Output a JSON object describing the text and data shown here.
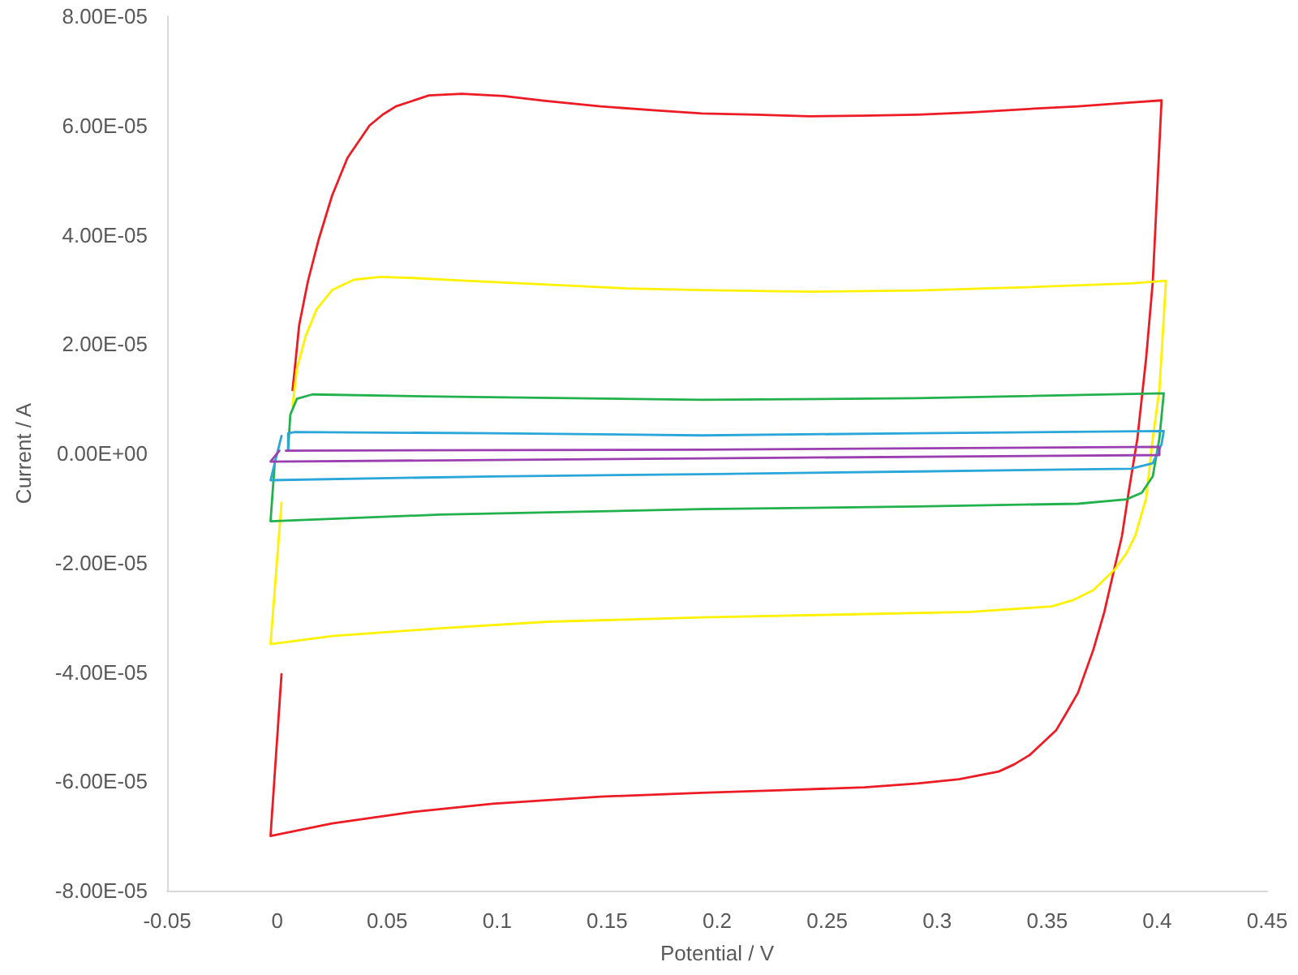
{
  "chart_data": {
    "type": "line",
    "xlabel": "Potential / V",
    "ylabel": "Current / A",
    "xlim": [
      -0.05,
      0.45
    ],
    "xticks": [
      -0.05,
      0,
      0.05,
      0.1,
      0.15,
      0.2,
      0.25,
      0.3,
      0.35,
      0.4,
      0.45
    ],
    "ylim": [
      -8e-05,
      8e-05
    ],
    "yticks": [
      {
        "value": -8e-05,
        "label": "-8.00E-05"
      },
      {
        "value": -6e-05,
        "label": "-6.00E-05"
      },
      {
        "value": -4e-05,
        "label": "-4.00E-05"
      },
      {
        "value": -2e-05,
        "label": "-2.00E-05"
      },
      {
        "value": 0,
        "label": "0.00E+00"
      },
      {
        "value": 2e-05,
        "label": "2.00E-05"
      },
      {
        "value": 4e-05,
        "label": "4.00E-05"
      },
      {
        "value": 6e-05,
        "label": "6.00E-05"
      },
      {
        "value": 8e-05,
        "label": "8.00E-05"
      }
    ],
    "grid": false,
    "series": [
      {
        "color": "#ed1c24",
        "x": [
          0.007,
          0.008,
          0.01,
          0.014,
          0.019,
          0.025,
          0.032,
          0.042,
          0.048,
          0.054,
          0.069,
          0.084,
          0.103,
          0.122,
          0.147,
          0.171,
          0.193,
          0.218,
          0.242,
          0.266,
          0.291,
          0.315,
          0.34,
          0.364,
          0.388,
          0.402,
          0.398,
          0.395,
          0.391,
          0.387,
          0.384,
          0.38,
          0.376,
          0.371,
          0.364,
          0.359,
          0.354,
          0.342,
          0.335,
          0.328,
          0.31,
          0.291,
          0.267,
          0.23,
          0.193,
          0.147,
          0.098,
          0.062,
          0.025,
          -0.003,
          0.002
        ],
        "values": [
          1.16e-05,
          1.54e-05,
          2.34e-05,
          3.15e-05,
          3.93e-05,
          4.72e-05,
          5.41e-05,
          6e-05,
          6.2e-05,
          6.35e-05,
          6.55e-05,
          6.58e-05,
          6.54e-05,
          6.45e-05,
          6.35e-05,
          6.28e-05,
          6.22e-05,
          6.2e-05,
          6.17e-05,
          6.18e-05,
          6.2e-05,
          6.24e-05,
          6.3e-05,
          6.35e-05,
          6.42e-05,
          6.46e-05,
          3.14e-05,
          1.75e-05,
          2.7e-06,
          -7.2e-06,
          -1.51e-05,
          -2.2e-05,
          -2.9e-05,
          -3.59e-05,
          -4.38e-05,
          -4.73e-05,
          -5.07e-05,
          -5.52e-05,
          -5.69e-05,
          -5.82e-05,
          -5.96e-05,
          -6.04e-05,
          -6.11e-05,
          -6.16e-05,
          -6.21e-05,
          -6.28e-05,
          -6.41e-05,
          -6.56e-05,
          -6.77e-05,
          -7e-05,
          -4.04e-05
        ]
      },
      {
        "color": "#fff200",
        "x": [
          0.007,
          0.009,
          0.013,
          0.018,
          0.025,
          0.035,
          0.047,
          0.062,
          0.086,
          0.123,
          0.159,
          0.193,
          0.242,
          0.291,
          0.34,
          0.388,
          0.404,
          0.401,
          0.398,
          0.395,
          0.39,
          0.386,
          0.381,
          0.371,
          0.362,
          0.352,
          0.315,
          0.254,
          0.193,
          0.123,
          0.074,
          0.025,
          -0.003,
          0.002
        ],
        "values": [
          8.6e-06,
          1.55e-05,
          2.15e-05,
          2.64e-05,
          2.99e-05,
          3.18e-05,
          3.23e-05,
          3.21e-05,
          3.16e-05,
          3.09e-05,
          3.02e-05,
          2.99e-05,
          2.96e-05,
          2.98e-05,
          3.04e-05,
          3.11e-05,
          3.16e-05,
          1.16e-05,
          2.7e-06,
          -8.2e-06,
          -1.51e-05,
          -1.83e-05,
          -2.11e-05,
          -2.5e-05,
          -2.68e-05,
          -2.8e-05,
          -2.9e-05,
          -2.95e-05,
          -3e-05,
          -3.08e-05,
          -3.2e-05,
          -3.34e-05,
          -3.49e-05,
          -9e-06
        ]
      },
      {
        "color": "#22b14c",
        "x": [
          0.005,
          0.006,
          0.009,
          0.016,
          0.074,
          0.193,
          0.291,
          0.403,
          0.401,
          0.398,
          0.393,
          0.386,
          0.364,
          0.291,
          0.193,
          0.074,
          -0.003,
          -0.001
        ],
        "values": [
          7e-07,
          7.1e-06,
          1e-05,
          1.08e-05,
          1.04e-05,
          9.8e-06,
          1.01e-05,
          1.1e-05,
          2.7e-06,
          -4.2e-06,
          -7.2e-06,
          -8.4e-06,
          -9.2e-06,
          -9.7e-06,
          -1.02e-05,
          -1.12e-05,
          -1.24e-05,
          -1.3e-06
        ]
      },
      {
        "color": "#2aa6d9",
        "x": [
          0.005,
          0.005,
          0.008,
          0.098,
          0.193,
          0.291,
          0.403,
          0.402,
          0.398,
          0.388,
          0.291,
          0.193,
          0.098,
          -0.003,
          0.002
        ],
        "values": [
          7e-07,
          3.7e-06,
          3.9e-06,
          3.7e-06,
          3.3e-06,
          3.7e-06,
          4.1e-06,
          1.7e-06,
          -1.8e-06,
          -2.8e-06,
          -3.3e-06,
          -3.8e-06,
          -4.2e-06,
          -4.9e-06,
          3.2e-06
        ]
      },
      {
        "color": "#9b3fb0",
        "x": [
          0.004,
          0.193,
          0.401,
          0.401,
          0.193,
          -0.003,
          0.001
        ],
        "values": [
          5e-07,
          7e-07,
          1.2e-06,
          -3e-07,
          -9e-07,
          -1.5e-06,
          5e-07
        ]
      }
    ]
  }
}
